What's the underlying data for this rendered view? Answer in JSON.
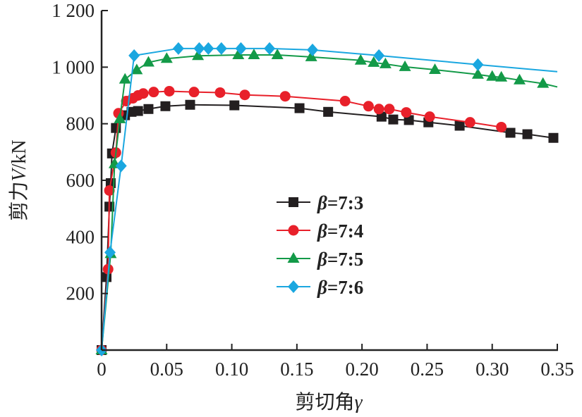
{
  "chart_data": {
    "type": "line",
    "title": "",
    "xlabel": "剪切角γ",
    "xlabel_parts": {
      "text": "剪切角",
      "symbol": "γ"
    },
    "ylabel": "剪力V/kN",
    "ylabel_parts": {
      "pre": "剪力",
      "symbol": "V",
      "post": "/kN"
    },
    "xlim": [
      0,
      0.35
    ],
    "ylim": [
      0,
      1200
    ],
    "x_ticks": [
      0,
      0.05,
      0.1,
      0.15,
      0.2,
      0.25,
      0.3,
      0.35
    ],
    "x_tick_labels": [
      "0",
      "0.05",
      "0.10",
      "0.15",
      "0.20",
      "0.25",
      "0.30",
      "0.35"
    ],
    "y_ticks": [
      200,
      400,
      600,
      800,
      1000,
      1200
    ],
    "y_tick_labels": [
      "200",
      "400",
      "600",
      "800",
      "1 000",
      "1 200"
    ],
    "grid": false,
    "legend_position": "center-left",
    "series": [
      {
        "name": "β=7:3",
        "label_symbol": "β",
        "label_value": "=7:3",
        "color": "#231f20",
        "marker": "square",
        "x": [
          0,
          0.0038,
          0.006,
          0.007,
          0.008,
          0.011,
          0.018,
          0.023,
          0.028,
          0.036,
          0.049,
          0.068,
          0.102,
          0.152,
          0.174,
          0.215,
          0.224,
          0.236,
          0.251,
          0.275,
          0.314,
          0.327,
          0.347
        ],
        "y": [
          0,
          258,
          507,
          590,
          695,
          785,
          830,
          842,
          845,
          852,
          862,
          867,
          865,
          855,
          842,
          825,
          815,
          813,
          805,
          793,
          768,
          763,
          750
        ]
      },
      {
        "name": "β=7:4",
        "label_symbol": "β",
        "label_value": "=7:4",
        "color": "#e8202a",
        "marker": "circle",
        "x": [
          0,
          0.005,
          0.006,
          0.011,
          0.013,
          0.019,
          0.024,
          0.028,
          0.032,
          0.04,
          0.052,
          0.071,
          0.091,
          0.11,
          0.141,
          0.187,
          0.205,
          0.213,
          0.221,
          0.234,
          0.252,
          0.283,
          0.307
        ],
        "y": [
          0,
          286,
          564,
          698,
          837,
          880,
          890,
          900,
          907,
          912,
          915,
          912,
          910,
          902,
          897,
          880,
          862,
          852,
          852,
          840,
          825,
          805,
          788
        ]
      },
      {
        "name": "β=7:5",
        "label_symbol": "β",
        "label_value": "=7:5",
        "color": "#139a48",
        "marker": "triangle",
        "x": [
          0,
          0.007,
          0.01,
          0.014,
          0.018,
          0.027,
          0.036,
          0.05,
          0.074,
          0.105,
          0.117,
          0.135,
          0.161,
          0.199,
          0.209,
          0.218,
          0.233,
          0.256,
          0.289,
          0.3,
          0.307,
          0.321,
          0.339,
          0.35
        ],
        "y": [
          0,
          340,
          658,
          817,
          957,
          990,
          1017,
          1030,
          1040,
          1043,
          1043,
          1043,
          1036,
          1024,
          1016,
          1011,
          1001,
          991,
          974,
          967,
          964,
          954,
          942,
          930
        ],
        "markers_hidden_last": true
      },
      {
        "name": "β=7:6",
        "label_symbol": "β",
        "label_value": "=7:6",
        "color": "#1aa7e0",
        "marker": "diamond",
        "x": [
          0,
          0.0065,
          0.015,
          0.025,
          0.059,
          0.075,
          0.082,
          0.092,
          0.107,
          0.129,
          0.162,
          0.213,
          0.289,
          0.35
        ],
        "y": [
          0,
          345,
          651,
          1041,
          1066,
          1066,
          1066,
          1066,
          1066,
          1066,
          1061,
          1041,
          1009,
          984
        ],
        "markers_hidden_last": true
      }
    ]
  }
}
